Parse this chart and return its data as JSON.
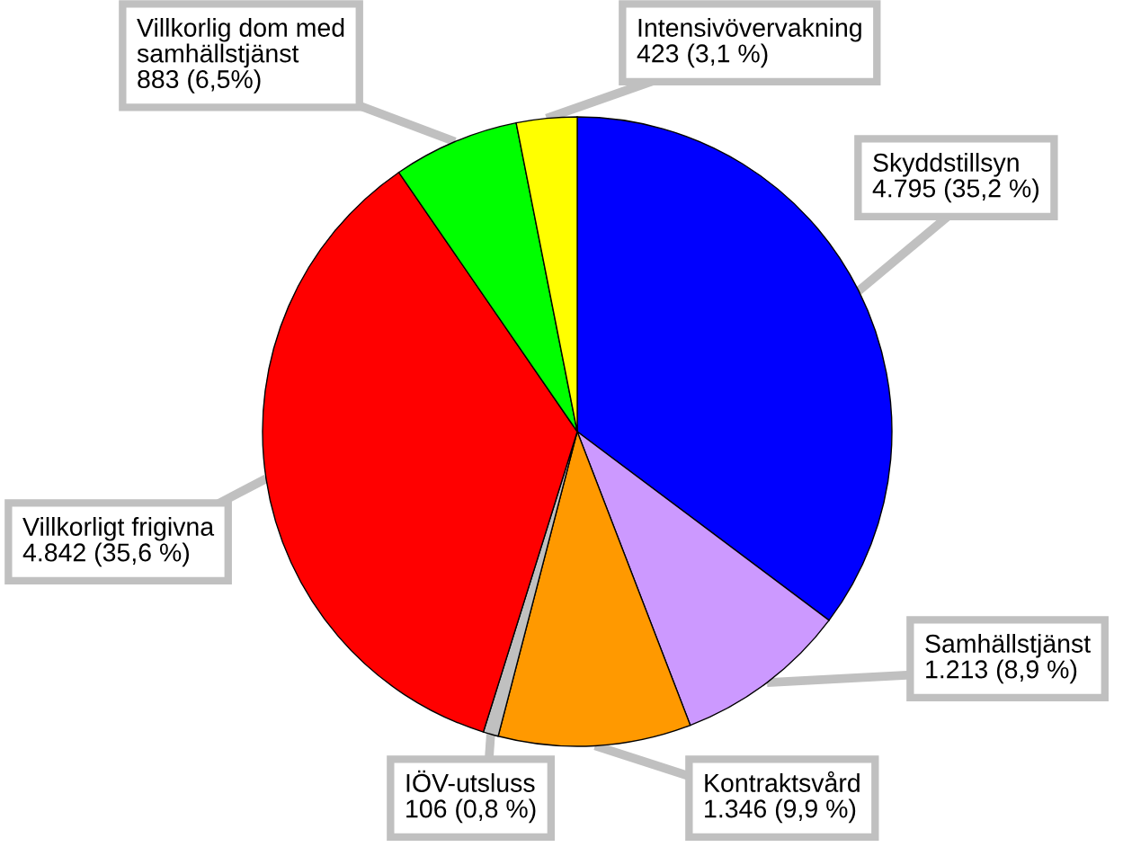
{
  "chart_data": {
    "type": "pie",
    "categories": [
      "Skyddstillsyn",
      "Samhällstjänst",
      "Kontraktsvård",
      "IÖV-utsluss",
      "Villkorligt frigivna",
      "Villkorlig dom med\nsamhällstjänst",
      "Intensivövervakning"
    ],
    "values": [
      4795,
      1213,
      1346,
      106,
      4842,
      883,
      423
    ],
    "value_labels": [
      "4.795 (35,2 %)",
      "1.213 (8,9 %)",
      "1.346 (9,9 %)",
      "106 (0,8 %)",
      "4.842 (35,6 %)",
      "883 (6,5%)",
      "423 (3,1 %)"
    ],
    "colors": [
      "#0000ff",
      "#cc99ff",
      "#ff9900",
      "#c0c0c0",
      "#ff0000",
      "#00ff00",
      "#ffff00"
    ]
  }
}
